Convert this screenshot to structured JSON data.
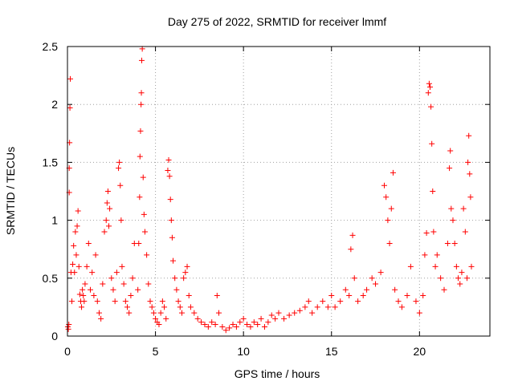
{
  "chart_data": {
    "type": "scatter",
    "title": "Day 275 of 2022, SRMTID for receiver lmmf",
    "xlabel": "GPS time / hours",
    "ylabel": "SRMTID / TECUs",
    "xlim": [
      0,
      24
    ],
    "ylim": [
      0,
      2.5
    ],
    "xticks": [
      0,
      5,
      10,
      15,
      20
    ],
    "xtick_labels": [
      "0",
      "5",
      "10",
      "15",
      "20"
    ],
    "yticks": [
      0,
      0.5,
      1,
      1.5,
      2,
      2.5
    ],
    "ytick_labels": [
      "0",
      "0.5",
      "1",
      "1.5",
      "2",
      "2.5"
    ],
    "grid": true,
    "marker": "+",
    "color": "#ff0000",
    "series": [
      {
        "name": "SRMTID",
        "points": [
          [
            0.02,
            0.08
          ],
          [
            0.05,
            0.06
          ],
          [
            0.08,
            0.1
          ],
          [
            0.1,
            1.24
          ],
          [
            0.1,
            1.45
          ],
          [
            0.12,
            1.67
          ],
          [
            0.14,
            1.97
          ],
          [
            0.16,
            2.22
          ],
          [
            0.2,
            0.55
          ],
          [
            0.25,
            0.3
          ],
          [
            0.3,
            0.62
          ],
          [
            0.35,
            0.78
          ],
          [
            0.4,
            0.55
          ],
          [
            0.45,
            0.9
          ],
          [
            0.5,
            0.7
          ],
          [
            0.55,
            0.95
          ],
          [
            0.6,
            1.08
          ],
          [
            0.65,
            0.6
          ],
          [
            0.7,
            0.36
          ],
          [
            0.75,
            0.3
          ],
          [
            0.8,
            0.25
          ],
          [
            0.85,
            0.4
          ],
          [
            0.9,
            0.35
          ],
          [
            0.95,
            0.3
          ],
          [
            1.0,
            0.45
          ],
          [
            1.1,
            0.6
          ],
          [
            1.2,
            0.8
          ],
          [
            1.3,
            0.4
          ],
          [
            1.4,
            0.55
          ],
          [
            1.5,
            0.35
          ],
          [
            1.6,
            0.7
          ],
          [
            1.7,
            0.3
          ],
          [
            1.8,
            0.2
          ],
          [
            1.9,
            0.15
          ],
          [
            2.0,
            0.45
          ],
          [
            2.1,
            0.9
          ],
          [
            2.2,
            1.0
          ],
          [
            2.25,
            1.15
          ],
          [
            2.3,
            1.25
          ],
          [
            2.35,
            0.95
          ],
          [
            2.4,
            1.1
          ],
          [
            2.5,
            0.5
          ],
          [
            2.6,
            0.4
          ],
          [
            2.7,
            0.3
          ],
          [
            2.8,
            0.55
          ],
          [
            2.9,
            1.45
          ],
          [
            2.95,
            1.5
          ],
          [
            3.0,
            1.3
          ],
          [
            3.05,
            1.0
          ],
          [
            3.1,
            0.6
          ],
          [
            3.2,
            0.45
          ],
          [
            3.3,
            0.3
          ],
          [
            3.4,
            0.25
          ],
          [
            3.5,
            0.2
          ],
          [
            3.6,
            0.35
          ],
          [
            3.7,
            0.5
          ],
          [
            3.8,
            0.8
          ],
          [
            4.0,
            0.4
          ],
          [
            4.05,
            0.8
          ],
          [
            4.1,
            1.2
          ],
          [
            4.12,
            1.55
          ],
          [
            4.15,
            1.77
          ],
          [
            4.18,
            2.0
          ],
          [
            4.2,
            2.1
          ],
          [
            4.22,
            2.38
          ],
          [
            4.25,
            2.48
          ],
          [
            4.3,
            1.37
          ],
          [
            4.35,
            1.05
          ],
          [
            4.4,
            0.9
          ],
          [
            4.5,
            0.7
          ],
          [
            4.6,
            0.45
          ],
          [
            4.7,
            0.3
          ],
          [
            4.8,
            0.25
          ],
          [
            4.9,
            0.2
          ],
          [
            5.0,
            0.15
          ],
          [
            5.1,
            0.12
          ],
          [
            5.2,
            0.1
          ],
          [
            5.3,
            0.2
          ],
          [
            5.4,
            0.3
          ],
          [
            5.5,
            0.25
          ],
          [
            5.6,
            0.15
          ],
          [
            5.7,
            1.43
          ],
          [
            5.75,
            1.52
          ],
          [
            5.8,
            1.38
          ],
          [
            5.85,
            1.18
          ],
          [
            5.9,
            1.0
          ],
          [
            5.95,
            0.85
          ],
          [
            6.0,
            0.65
          ],
          [
            6.1,
            0.5
          ],
          [
            6.2,
            0.4
          ],
          [
            6.3,
            0.3
          ],
          [
            6.4,
            0.25
          ],
          [
            6.5,
            0.2
          ],
          [
            6.6,
            0.5
          ],
          [
            6.7,
            0.55
          ],
          [
            6.8,
            0.6
          ],
          [
            6.9,
            0.35
          ],
          [
            7.0,
            0.25
          ],
          [
            7.2,
            0.2
          ],
          [
            7.4,
            0.15
          ],
          [
            7.6,
            0.12
          ],
          [
            7.8,
            0.1
          ],
          [
            8.0,
            0.08
          ],
          [
            8.2,
            0.12
          ],
          [
            8.4,
            0.1
          ],
          [
            8.5,
            0.35
          ],
          [
            8.6,
            0.2
          ],
          [
            8.8,
            0.08
          ],
          [
            9.0,
            0.05
          ],
          [
            9.2,
            0.07
          ],
          [
            9.4,
            0.1
          ],
          [
            9.6,
            0.08
          ],
          [
            9.8,
            0.12
          ],
          [
            10.0,
            0.15
          ],
          [
            10.2,
            0.1
          ],
          [
            10.4,
            0.08
          ],
          [
            10.6,
            0.12
          ],
          [
            10.8,
            0.1
          ],
          [
            11.0,
            0.15
          ],
          [
            11.2,
            0.08
          ],
          [
            11.4,
            0.12
          ],
          [
            11.6,
            0.18
          ],
          [
            11.8,
            0.15
          ],
          [
            12.0,
            0.2
          ],
          [
            12.3,
            0.15
          ],
          [
            12.6,
            0.18
          ],
          [
            12.9,
            0.2
          ],
          [
            13.2,
            0.22
          ],
          [
            13.5,
            0.25
          ],
          [
            13.7,
            0.3
          ],
          [
            13.9,
            0.2
          ],
          [
            14.2,
            0.25
          ],
          [
            14.5,
            0.3
          ],
          [
            14.8,
            0.25
          ],
          [
            15.0,
            0.35
          ],
          [
            15.2,
            0.25
          ],
          [
            15.5,
            0.3
          ],
          [
            15.8,
            0.4
          ],
          [
            16.0,
            0.35
          ],
          [
            16.1,
            0.75
          ],
          [
            16.2,
            0.87
          ],
          [
            16.3,
            0.5
          ],
          [
            16.5,
            0.3
          ],
          [
            16.8,
            0.35
          ],
          [
            17.0,
            0.4
          ],
          [
            17.3,
            0.5
          ],
          [
            17.5,
            0.45
          ],
          [
            17.8,
            0.55
          ],
          [
            18.0,
            1.3
          ],
          [
            18.1,
            1.2
          ],
          [
            18.2,
            1.0
          ],
          [
            18.3,
            0.8
          ],
          [
            18.4,
            1.1
          ],
          [
            18.5,
            1.41
          ],
          [
            18.6,
            0.4
          ],
          [
            18.8,
            0.3
          ],
          [
            19.0,
            0.25
          ],
          [
            19.3,
            0.35
          ],
          [
            19.5,
            0.6
          ],
          [
            19.8,
            0.3
          ],
          [
            20.0,
            0.2
          ],
          [
            20.2,
            0.35
          ],
          [
            20.3,
            0.7
          ],
          [
            20.4,
            0.89
          ],
          [
            20.5,
            2.1
          ],
          [
            20.55,
            2.18
          ],
          [
            20.6,
            2.15
          ],
          [
            20.65,
            1.98
          ],
          [
            20.7,
            1.66
          ],
          [
            20.75,
            1.25
          ],
          [
            20.8,
            0.9
          ],
          [
            20.9,
            0.6
          ],
          [
            21.0,
            0.7
          ],
          [
            21.2,
            0.5
          ],
          [
            21.4,
            0.4
          ],
          [
            21.6,
            0.8
          ],
          [
            21.7,
            1.45
          ],
          [
            21.75,
            1.6
          ],
          [
            21.8,
            1.1
          ],
          [
            21.9,
            1.0
          ],
          [
            22.0,
            0.8
          ],
          [
            22.1,
            0.6
          ],
          [
            22.2,
            0.5
          ],
          [
            22.3,
            0.45
          ],
          [
            22.4,
            0.55
          ],
          [
            22.5,
            1.1
          ],
          [
            22.6,
            0.9
          ],
          [
            22.7,
            0.5
          ],
          [
            22.75,
            1.5
          ],
          [
            22.8,
            1.73
          ],
          [
            22.85,
            1.4
          ],
          [
            22.9,
            1.2
          ],
          [
            22.95,
            0.6
          ]
        ]
      }
    ]
  }
}
